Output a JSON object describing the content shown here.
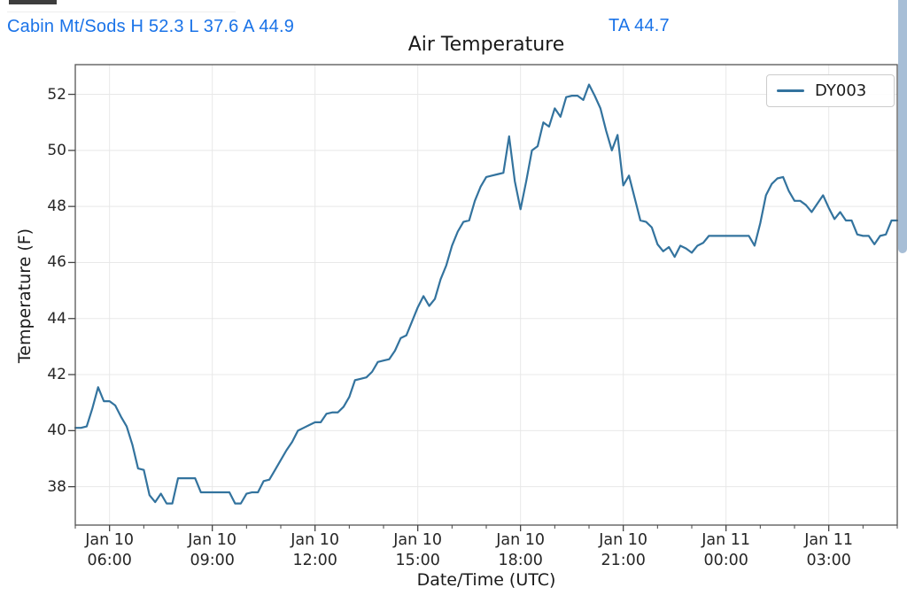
{
  "header": {
    "station_summary": "Cabin Mt/Sods H 52.3 L 37.6 A 44.9",
    "ta_value": "TA 44.7",
    "text_color": "#1a73e8"
  },
  "chart_data": {
    "type": "line",
    "title": "Air Temperature",
    "xlabel": "Date/Time (UTC)",
    "ylabel": "Temperature (F)",
    "grid": true,
    "legend_position": "upper right",
    "ylim": [
      36.63,
      53.06
    ],
    "y_ticks": [
      38,
      40,
      42,
      44,
      46,
      48,
      50,
      52
    ],
    "x_ticks": [
      {
        "line1": "Jan 10",
        "line2": "06:00",
        "hour": 1
      },
      {
        "line1": "Jan 10",
        "line2": "09:00",
        "hour": 4
      },
      {
        "line1": "Jan 10",
        "line2": "12:00",
        "hour": 7
      },
      {
        "line1": "Jan 10",
        "line2": "15:00",
        "hour": 10
      },
      {
        "line1": "Jan 10",
        "line2": "18:00",
        "hour": 13
      },
      {
        "line1": "Jan 10",
        "line2": "21:00",
        "hour": 16
      },
      {
        "line1": "Jan 11",
        "line2": "00:00",
        "hour": 19
      },
      {
        "line1": "Jan 11",
        "line2": "03:00",
        "hour": 22
      }
    ],
    "x_minor_tick_hours": 1,
    "x_span_hours": 24,
    "x_start": "Jan 10 05:00 UTC",
    "x_end": "Jan 11 05:00 UTC",
    "series": [
      {
        "name": "DY003",
        "color": "#33739e",
        "interval_minutes": 10,
        "values": [
          40.1,
          40.1,
          40.15,
          40.8,
          41.55,
          41.05,
          41.05,
          40.9,
          40.5,
          40.15,
          39.5,
          38.65,
          38.6,
          37.7,
          37.45,
          37.75,
          37.4,
          37.4,
          38.3,
          38.3,
          38.3,
          38.3,
          37.8,
          37.8,
          37.8,
          37.8,
          37.8,
          37.8,
          37.4,
          37.4,
          37.75,
          37.8,
          37.8,
          38.2,
          38.25,
          38.6,
          38.95,
          39.3,
          39.6,
          40.0,
          40.1,
          40.2,
          40.3,
          40.3,
          40.6,
          40.65,
          40.65,
          40.85,
          41.2,
          41.8,
          41.85,
          41.9,
          42.1,
          42.45,
          42.5,
          42.55,
          42.85,
          43.3,
          43.4,
          43.9,
          44.4,
          44.8,
          44.45,
          44.7,
          45.4,
          45.9,
          46.6,
          47.1,
          47.45,
          47.5,
          48.2,
          48.7,
          49.05,
          49.1,
          49.15,
          49.2,
          50.5,
          48.9,
          47.9,
          48.9,
          50.0,
          50.15,
          51.0,
          50.85,
          51.5,
          51.2,
          51.9,
          51.95,
          51.95,
          51.8,
          52.35,
          51.95,
          51.5,
          50.7,
          50.0,
          50.55,
          48.75,
          49.1,
          48.3,
          47.5,
          47.45,
          47.25,
          46.65,
          46.4,
          46.55,
          46.2,
          46.6,
          46.5,
          46.35,
          46.6,
          46.7,
          46.95,
          46.95,
          46.95,
          46.95,
          46.95,
          46.95,
          46.95,
          46.95,
          46.6,
          47.4,
          48.4,
          48.8,
          49.0,
          49.05,
          48.55,
          48.2,
          48.2,
          48.05,
          47.8,
          48.1,
          48.4,
          47.95,
          47.55,
          47.8,
          47.5,
          47.5,
          47.0,
          46.95,
          46.95,
          46.65,
          46.95,
          47.0,
          47.5,
          47.5
        ]
      }
    ],
    "style": {
      "grid_color": "#e8e8e8",
      "spine_color": "#555555",
      "tick_color": "#444444"
    }
  }
}
